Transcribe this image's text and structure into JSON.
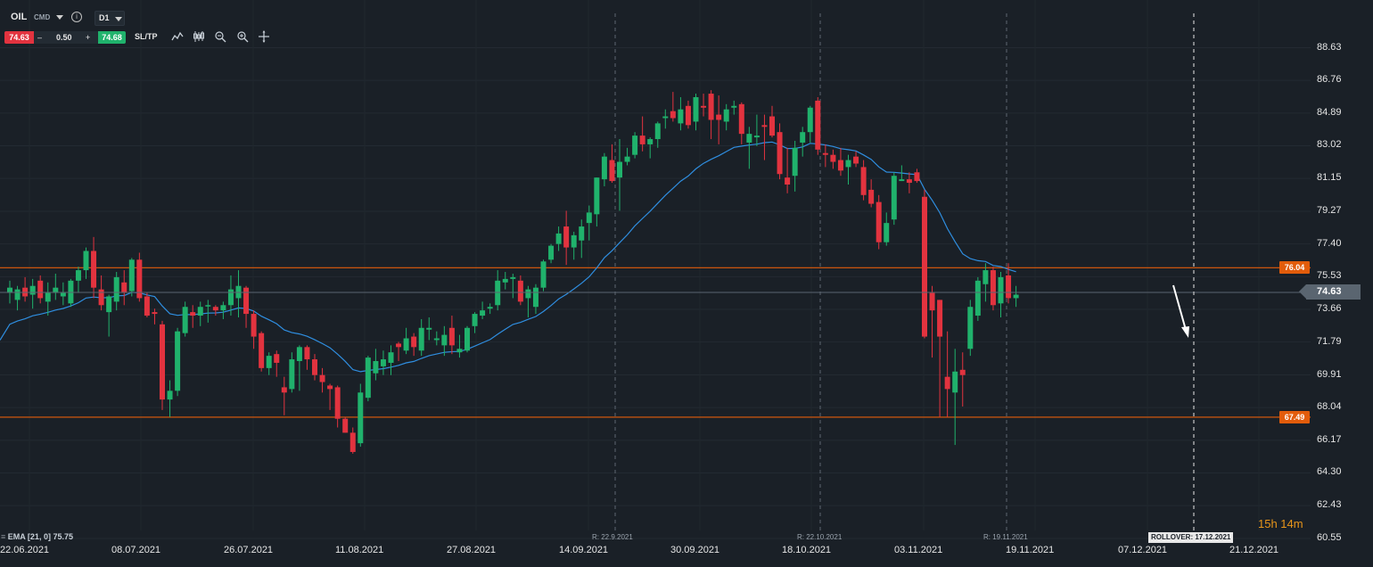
{
  "toolbar": {
    "symbol": "OIL",
    "type": "CMD",
    "timeframe": "D1",
    "sell_price": "74.63",
    "minus": "–",
    "volume": "0.50",
    "plus": "+",
    "buy_price": "74.68",
    "sltp_label": "SL/TP",
    "icons": [
      "line-chart-icon",
      "candle-type-icon",
      "zoom-out-icon",
      "zoom-in-icon",
      "crosshair-icon"
    ]
  },
  "indicator_label": "EMA [21, 0] 75.75",
  "countdown": "15h 14m",
  "rollover": "ROLLOVER: 17.12.2021",
  "colors": {
    "bull": "#20b26c",
    "bear": "#e2333f",
    "ema": "#2f8ee0",
    "level": "#e25c0b",
    "bg": "#1a2027"
  },
  "chart_data": {
    "type": "candlestick",
    "symbol": "OIL",
    "timeframe": "D1",
    "ylim": [
      60.55,
      89.9
    ],
    "y_ticks": [
      "88.63",
      "86.76",
      "84.89",
      "83.02",
      "81.15",
      "79.27",
      "77.40",
      "75.53",
      "73.66",
      "71.79",
      "69.91",
      "68.04",
      "66.17",
      "64.30",
      "62.43",
      "60.55"
    ],
    "x_ticks": [
      "22.06.2021",
      "08.07.2021",
      "26.07.2021",
      "11.08.2021",
      "27.08.2021",
      "14.09.2021",
      "30.09.2021",
      "18.10.2021",
      "03.11.2021",
      "19.11.2021",
      "07.12.2021",
      "21.12.2021"
    ],
    "rollover_marks": [
      "R: 22.9.2021",
      "R: 22.10.2021",
      "R: 19.11.2021"
    ],
    "current_price": "74.63",
    "levels": [
      {
        "value": 76.04,
        "label": "76.04"
      },
      {
        "value": 67.49,
        "label": "67.49"
      }
    ],
    "ema": {
      "label": "EMA [21, 0] 75.75",
      "period": 21,
      "value": 75.75
    },
    "candles": [
      {
        "o": 74.6,
        "h": 75.3,
        "l": 74.0,
        "c": 74.9
      },
      {
        "o": 74.2,
        "h": 75.0,
        "l": 73.6,
        "c": 74.8
      },
      {
        "o": 74.9,
        "h": 75.5,
        "l": 74.1,
        "c": 74.4
      },
      {
        "o": 74.5,
        "h": 75.4,
        "l": 73.7,
        "c": 75.0
      },
      {
        "o": 75.3,
        "h": 75.6,
        "l": 74.0,
        "c": 74.3
      },
      {
        "o": 74.1,
        "h": 75.2,
        "l": 73.3,
        "c": 74.6
      },
      {
        "o": 74.6,
        "h": 75.7,
        "l": 74.2,
        "c": 74.9
      },
      {
        "o": 74.4,
        "h": 75.2,
        "l": 73.9,
        "c": 74.6
      },
      {
        "o": 74.0,
        "h": 75.4,
        "l": 73.8,
        "c": 75.3
      },
      {
        "o": 75.3,
        "h": 76.1,
        "l": 74.6,
        "c": 75.9
      },
      {
        "o": 75.9,
        "h": 77.2,
        "l": 75.4,
        "c": 77.0
      },
      {
        "o": 77.0,
        "h": 77.8,
        "l": 74.3,
        "c": 74.9
      },
      {
        "o": 74.8,
        "h": 75.6,
        "l": 73.6,
        "c": 73.9
      },
      {
        "o": 73.5,
        "h": 74.5,
        "l": 72.1,
        "c": 74.4
      },
      {
        "o": 74.1,
        "h": 75.8,
        "l": 73.6,
        "c": 75.5
      },
      {
        "o": 75.2,
        "h": 75.9,
        "l": 73.9,
        "c": 74.6
      },
      {
        "o": 74.7,
        "h": 76.6,
        "l": 74.4,
        "c": 76.5
      },
      {
        "o": 76.5,
        "h": 76.9,
        "l": 74.1,
        "c": 74.3
      },
      {
        "o": 74.4,
        "h": 74.6,
        "l": 73.2,
        "c": 73.3
      },
      {
        "o": 73.5,
        "h": 73.7,
        "l": 72.8,
        "c": 73.4
      },
      {
        "o": 72.8,
        "h": 73.0,
        "l": 67.9,
        "c": 68.5
      },
      {
        "o": 68.5,
        "h": 69.6,
        "l": 67.5,
        "c": 69.0
      },
      {
        "o": 69.0,
        "h": 72.6,
        "l": 68.7,
        "c": 72.4
      },
      {
        "o": 72.3,
        "h": 74.1,
        "l": 72.1,
        "c": 73.8
      },
      {
        "o": 73.5,
        "h": 73.9,
        "l": 72.6,
        "c": 73.3
      },
      {
        "o": 73.3,
        "h": 74.1,
        "l": 72.7,
        "c": 73.8
      },
      {
        "o": 73.9,
        "h": 74.2,
        "l": 72.9,
        "c": 73.9
      },
      {
        "o": 73.8,
        "h": 73.9,
        "l": 73.3,
        "c": 73.6
      },
      {
        "o": 73.6,
        "h": 74.1,
        "l": 73.1,
        "c": 73.9
      },
      {
        "o": 73.9,
        "h": 75.6,
        "l": 73.3,
        "c": 74.8
      },
      {
        "o": 74.3,
        "h": 75.9,
        "l": 73.2,
        "c": 75.0
      },
      {
        "o": 74.9,
        "h": 75.0,
        "l": 72.6,
        "c": 73.4
      },
      {
        "o": 73.4,
        "h": 73.6,
        "l": 71.4,
        "c": 72.1
      },
      {
        "o": 72.3,
        "h": 72.4,
        "l": 70.1,
        "c": 70.3
      },
      {
        "o": 70.3,
        "h": 71.2,
        "l": 69.9,
        "c": 71.0
      },
      {
        "o": 71.1,
        "h": 71.3,
        "l": 69.8,
        "c": 70.6
      },
      {
        "o": 69.2,
        "h": 69.8,
        "l": 67.6,
        "c": 68.9
      },
      {
        "o": 69.1,
        "h": 71.2,
        "l": 68.9,
        "c": 70.8
      },
      {
        "o": 70.7,
        "h": 71.6,
        "l": 69.0,
        "c": 71.5
      },
      {
        "o": 71.5,
        "h": 71.6,
        "l": 70.2,
        "c": 70.8
      },
      {
        "o": 70.8,
        "h": 71.1,
        "l": 69.6,
        "c": 69.9
      },
      {
        "o": 69.9,
        "h": 70.3,
        "l": 68.9,
        "c": 69.5
      },
      {
        "o": 69.3,
        "h": 69.4,
        "l": 67.9,
        "c": 69.1
      },
      {
        "o": 69.2,
        "h": 69.3,
        "l": 66.9,
        "c": 67.4
      },
      {
        "o": 67.4,
        "h": 67.5,
        "l": 66.6,
        "c": 66.6
      },
      {
        "o": 66.6,
        "h": 66.9,
        "l": 65.4,
        "c": 65.5
      },
      {
        "o": 66.0,
        "h": 69.4,
        "l": 65.8,
        "c": 68.9
      },
      {
        "o": 68.6,
        "h": 71.0,
        "l": 68.4,
        "c": 70.9
      },
      {
        "o": 70.0,
        "h": 71.4,
        "l": 69.6,
        "c": 70.7
      },
      {
        "o": 70.4,
        "h": 71.3,
        "l": 69.9,
        "c": 70.8
      },
      {
        "o": 70.6,
        "h": 71.6,
        "l": 69.9,
        "c": 71.2
      },
      {
        "o": 71.7,
        "h": 71.8,
        "l": 70.7,
        "c": 71.5
      },
      {
        "o": 71.3,
        "h": 72.6,
        "l": 71.1,
        "c": 72.0
      },
      {
        "o": 72.1,
        "h": 72.3,
        "l": 71.0,
        "c": 71.5
      },
      {
        "o": 71.3,
        "h": 73.1,
        "l": 71.0,
        "c": 72.6
      },
      {
        "o": 72.5,
        "h": 73.2,
        "l": 71.9,
        "c": 72.6
      },
      {
        "o": 71.9,
        "h": 72.4,
        "l": 71.6,
        "c": 72.0
      },
      {
        "o": 71.6,
        "h": 72.7,
        "l": 71.0,
        "c": 72.2
      },
      {
        "o": 72.6,
        "h": 73.3,
        "l": 71.1,
        "c": 71.6
      },
      {
        "o": 71.2,
        "h": 72.2,
        "l": 70.9,
        "c": 71.4
      },
      {
        "o": 71.3,
        "h": 72.7,
        "l": 71.2,
        "c": 72.6
      },
      {
        "o": 72.7,
        "h": 73.5,
        "l": 72.3,
        "c": 73.4
      },
      {
        "o": 73.3,
        "h": 74.1,
        "l": 73.1,
        "c": 73.6
      },
      {
        "o": 73.7,
        "h": 74.0,
        "l": 73.4,
        "c": 73.8
      },
      {
        "o": 73.9,
        "h": 75.9,
        "l": 73.6,
        "c": 75.3
      },
      {
        "o": 75.2,
        "h": 75.8,
        "l": 74.8,
        "c": 75.4
      },
      {
        "o": 75.4,
        "h": 75.7,
        "l": 74.3,
        "c": 75.5
      },
      {
        "o": 75.3,
        "h": 75.6,
        "l": 73.9,
        "c": 74.1
      },
      {
        "o": 74.3,
        "h": 75.0,
        "l": 73.2,
        "c": 74.8
      },
      {
        "o": 73.8,
        "h": 75.1,
        "l": 73.4,
        "c": 74.9
      },
      {
        "o": 74.9,
        "h": 76.5,
        "l": 74.7,
        "c": 76.4
      },
      {
        "o": 76.5,
        "h": 77.4,
        "l": 76.3,
        "c": 77.3
      },
      {
        "o": 77.4,
        "h": 78.4,
        "l": 77.0,
        "c": 78.0
      },
      {
        "o": 78.4,
        "h": 79.3,
        "l": 76.2,
        "c": 77.2
      },
      {
        "o": 77.2,
        "h": 78.1,
        "l": 76.5,
        "c": 77.9
      },
      {
        "o": 77.6,
        "h": 78.8,
        "l": 76.6,
        "c": 78.4
      },
      {
        "o": 78.6,
        "h": 79.6,
        "l": 77.6,
        "c": 79.2
      },
      {
        "o": 79.1,
        "h": 81.2,
        "l": 78.4,
        "c": 81.2
      },
      {
        "o": 81.1,
        "h": 82.6,
        "l": 80.7,
        "c": 82.4
      },
      {
        "o": 82.2,
        "h": 83.1,
        "l": 80.9,
        "c": 81.0
      },
      {
        "o": 81.2,
        "h": 83.4,
        "l": 79.3,
        "c": 82.1
      },
      {
        "o": 82.1,
        "h": 82.9,
        "l": 81.9,
        "c": 82.4
      },
      {
        "o": 82.5,
        "h": 83.8,
        "l": 82.3,
        "c": 83.6
      },
      {
        "o": 83.6,
        "h": 84.7,
        "l": 82.7,
        "c": 83.1
      },
      {
        "o": 83.1,
        "h": 83.5,
        "l": 82.3,
        "c": 83.4
      },
      {
        "o": 83.4,
        "h": 84.4,
        "l": 82.9,
        "c": 84.3
      },
      {
        "o": 84.6,
        "h": 85.1,
        "l": 84.0,
        "c": 84.7
      },
      {
        "o": 85.0,
        "h": 86.1,
        "l": 84.4,
        "c": 84.6
      },
      {
        "o": 84.3,
        "h": 85.8,
        "l": 83.9,
        "c": 85.1
      },
      {
        "o": 85.3,
        "h": 85.6,
        "l": 84.0,
        "c": 84.2
      },
      {
        "o": 84.4,
        "h": 86.0,
        "l": 83.9,
        "c": 85.8
      },
      {
        "o": 85.3,
        "h": 86.0,
        "l": 84.7,
        "c": 85.2
      },
      {
        "o": 86.0,
        "h": 86.2,
        "l": 83.4,
        "c": 84.5
      },
      {
        "o": 84.8,
        "h": 85.9,
        "l": 83.1,
        "c": 84.5
      },
      {
        "o": 84.4,
        "h": 85.4,
        "l": 83.9,
        "c": 85.1
      },
      {
        "o": 85.2,
        "h": 85.6,
        "l": 84.8,
        "c": 85.3
      },
      {
        "o": 85.4,
        "h": 85.5,
        "l": 83.1,
        "c": 83.7
      },
      {
        "o": 83.2,
        "h": 84.1,
        "l": 81.7,
        "c": 83.7
      },
      {
        "o": 83.5,
        "h": 84.8,
        "l": 83.0,
        "c": 83.6
      },
      {
        "o": 84.2,
        "h": 84.8,
        "l": 82.2,
        "c": 84.1
      },
      {
        "o": 84.7,
        "h": 85.3,
        "l": 83.5,
        "c": 83.6
      },
      {
        "o": 83.8,
        "h": 84.3,
        "l": 81.1,
        "c": 81.4
      },
      {
        "o": 81.2,
        "h": 82.9,
        "l": 80.3,
        "c": 80.8
      },
      {
        "o": 81.3,
        "h": 83.3,
        "l": 80.4,
        "c": 82.9
      },
      {
        "o": 83.2,
        "h": 84.1,
        "l": 82.4,
        "c": 83.8
      },
      {
        "o": 83.8,
        "h": 85.3,
        "l": 83.2,
        "c": 85.2
      },
      {
        "o": 85.6,
        "h": 85.8,
        "l": 82.5,
        "c": 82.8
      },
      {
        "o": 82.6,
        "h": 83.1,
        "l": 81.8,
        "c": 82.5
      },
      {
        "o": 82.5,
        "h": 82.8,
        "l": 81.7,
        "c": 82.1
      },
      {
        "o": 82.2,
        "h": 82.9,
        "l": 81.3,
        "c": 81.6
      },
      {
        "o": 81.8,
        "h": 82.5,
        "l": 80.8,
        "c": 82.2
      },
      {
        "o": 82.4,
        "h": 82.7,
        "l": 81.8,
        "c": 82.0
      },
      {
        "o": 81.8,
        "h": 82.2,
        "l": 79.9,
        "c": 80.2
      },
      {
        "o": 80.5,
        "h": 81.1,
        "l": 79.5,
        "c": 79.7
      },
      {
        "o": 79.8,
        "h": 80.2,
        "l": 77.1,
        "c": 77.5
      },
      {
        "o": 77.5,
        "h": 79.2,
        "l": 77.3,
        "c": 78.6
      },
      {
        "o": 78.8,
        "h": 81.5,
        "l": 78.5,
        "c": 81.3
      },
      {
        "o": 81.0,
        "h": 81.9,
        "l": 81.0,
        "c": 81.1
      },
      {
        "o": 81.1,
        "h": 81.5,
        "l": 80.3,
        "c": 80.9
      },
      {
        "o": 81.5,
        "h": 81.7,
        "l": 80.9,
        "c": 81.0
      },
      {
        "o": 80.1,
        "h": 80.5,
        "l": 72.0,
        "c": 72.1
      },
      {
        "o": 74.6,
        "h": 75.0,
        "l": 70.9,
        "c": 73.6
      },
      {
        "o": 74.2,
        "h": 74.2,
        "l": 67.5,
        "c": 72.1
      },
      {
        "o": 69.8,
        "h": 72.4,
        "l": 67.5,
        "c": 69.1
      },
      {
        "o": 68.9,
        "h": 71.4,
        "l": 65.9,
        "c": 70.1
      },
      {
        "o": 70.2,
        "h": 71.2,
        "l": 68.1,
        "c": 69.9
      },
      {
        "o": 71.4,
        "h": 74.2,
        "l": 71.0,
        "c": 73.8
      },
      {
        "o": 73.3,
        "h": 75.5,
        "l": 73.0,
        "c": 75.3
      },
      {
        "o": 75.1,
        "h": 76.3,
        "l": 74.1,
        "c": 75.9
      },
      {
        "o": 75.9,
        "h": 76.1,
        "l": 73.6,
        "c": 73.9
      },
      {
        "o": 74.0,
        "h": 75.8,
        "l": 73.2,
        "c": 75.5
      },
      {
        "o": 75.6,
        "h": 76.3,
        "l": 74.0,
        "c": 74.3
      },
      {
        "o": 74.3,
        "h": 75.0,
        "l": 73.8,
        "c": 74.5
      }
    ]
  }
}
